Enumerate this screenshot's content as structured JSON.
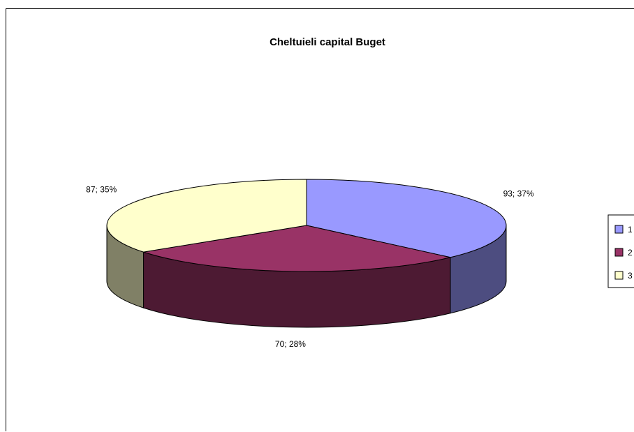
{
  "chart_data": {
    "type": "pie",
    "title": "Cheltuieli capital Buget",
    "categories": [
      "1",
      "2",
      "3"
    ],
    "values": [
      93,
      70,
      87
    ],
    "percents": [
      37,
      28,
      35
    ],
    "data_labels": [
      "93; 37%",
      "70; 28%",
      "87; 35%"
    ],
    "colors": [
      "#9999ff",
      "#993366",
      "#ffffcc"
    ],
    "side_colors": [
      "#4d4d80",
      "#4d1a33",
      "#808066"
    ],
    "legend_position": "right",
    "view": "3d"
  }
}
